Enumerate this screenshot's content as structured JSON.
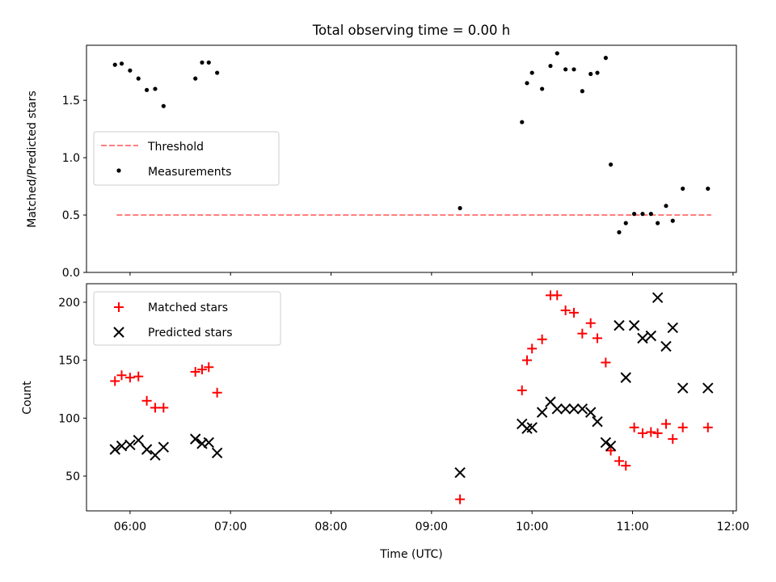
{
  "chart_data": [
    {
      "type": "scatter",
      "title": "Total observing time = 0.00 h",
      "ylabel": "Matched/Predicted stars",
      "ylim": [
        0,
        1.98
      ],
      "yticks": [
        0.0,
        0.5,
        1.0,
        1.5
      ],
      "ytick_labels": [
        "0.0",
        "0.5",
        "1.0",
        "1.5"
      ],
      "legend_position": "center-left",
      "threshold": {
        "name": "Threshold",
        "color": "#ff7f7f",
        "x": [
          "05:52",
          "11:47"
        ],
        "y": [
          0.5,
          0.5
        ]
      },
      "series": [
        {
          "name": "Measurements",
          "color": "#000000",
          "marker": "dot",
          "x": [
            "05:51",
            "05:55",
            "06:00",
            "06:05",
            "06:10",
            "06:15",
            "06:20",
            "06:39",
            "06:43",
            "06:47",
            "06:52",
            "09:17",
            "09:54",
            "09:57",
            "10:00",
            "10:06",
            "10:11",
            "10:15",
            "10:20",
            "10:25",
            "10:30",
            "10:35",
            "10:39",
            "10:44",
            "10:47",
            "10:52",
            "10:56",
            "11:01",
            "11:06",
            "11:11",
            "11:15",
            "11:20",
            "11:24",
            "11:30",
            "11:45"
          ],
          "y": [
            1.81,
            1.82,
            1.76,
            1.69,
            1.59,
            1.6,
            1.45,
            1.69,
            1.83,
            1.83,
            1.74,
            0.56,
            1.31,
            1.65,
            1.74,
            1.6,
            1.8,
            1.91,
            1.77,
            1.77,
            1.58,
            1.73,
            1.74,
            1.87,
            0.94,
            0.35,
            0.43,
            0.51,
            0.51,
            0.51,
            0.43,
            0.58,
            0.45,
            0.73,
            0.73
          ]
        }
      ]
    },
    {
      "type": "scatter",
      "xlabel": "Time (UTC)",
      "ylabel": "Count",
      "xlim": [
        "05:34",
        "12:02"
      ],
      "xticks": [
        "06:00",
        "07:00",
        "08:00",
        "09:00",
        "10:00",
        "11:00",
        "12:00"
      ],
      "ylim": [
        20,
        216
      ],
      "yticks": [
        50,
        100,
        150,
        200
      ],
      "legend_position": "top-left",
      "series": [
        {
          "name": "Matched stars",
          "color": "#ff0000",
          "marker": "plus",
          "x": [
            "05:51",
            "05:55",
            "06:00",
            "06:05",
            "06:10",
            "06:15",
            "06:20",
            "06:39",
            "06:43",
            "06:47",
            "06:52",
            "09:17",
            "09:54",
            "09:57",
            "10:00",
            "10:06",
            "10:11",
            "10:15",
            "10:20",
            "10:25",
            "10:30",
            "10:35",
            "10:39",
            "10:44",
            "10:47",
            "10:52",
            "10:56",
            "11:01",
            "11:06",
            "11:11",
            "11:15",
            "11:20",
            "11:24",
            "11:30",
            "11:45"
          ],
          "y": [
            132,
            137,
            135,
            136,
            115,
            109,
            109,
            140,
            142,
            144,
            122,
            30,
            124,
            150,
            160,
            168,
            206,
            206,
            193,
            191,
            173,
            182,
            169,
            148,
            72,
            63,
            59,
            92,
            87,
            88,
            87,
            95,
            82,
            92,
            92
          ]
        },
        {
          "name": "Predicted stars",
          "color": "#000000",
          "marker": "x",
          "x": [
            "05:51",
            "05:55",
            "06:00",
            "06:05",
            "06:10",
            "06:15",
            "06:20",
            "06:39",
            "06:43",
            "06:47",
            "06:52",
            "09:17",
            "09:54",
            "09:57",
            "10:00",
            "10:06",
            "10:11",
            "10:15",
            "10:20",
            "10:25",
            "10:30",
            "10:35",
            "10:39",
            "10:44",
            "10:47",
            "10:52",
            "10:56",
            "11:01",
            "11:06",
            "11:11",
            "11:15",
            "11:20",
            "11:24",
            "11:30",
            "11:45"
          ],
          "y": [
            73,
            76,
            77,
            81,
            73,
            68,
            75,
            82,
            78,
            79,
            70,
            53,
            95,
            91,
            92,
            105,
            114,
            108,
            108,
            108,
            108,
            105,
            97,
            79,
            76,
            180,
            135,
            180,
            169,
            171,
            204,
            162,
            178,
            126,
            126
          ]
        }
      ]
    }
  ]
}
